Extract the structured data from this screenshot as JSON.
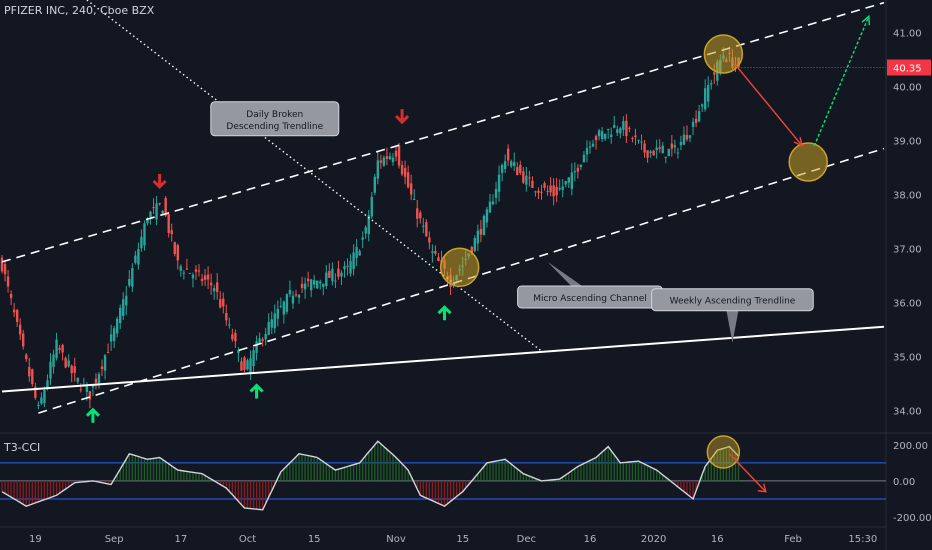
{
  "header": {
    "symbol_line": "PFIZER INC, 240, Cboe BZX"
  },
  "indicator": {
    "name": "T3-CCI"
  },
  "price": {
    "last": "40.35",
    "last_color": "#f23645"
  },
  "colors": {
    "background": "#131722",
    "up": "#26a69a",
    "down": "#ef5350",
    "annotation_circle": "#c9a227",
    "up_arrow": "#00e676",
    "down_arrow": "#d32f2f",
    "forecast_down": "#f44336",
    "forecast_up": "#00e676"
  },
  "chart_data": [
    {
      "type": "candlestick",
      "title": "PFIZER INC, 240, Cboe BZX",
      "y_axis": {
        "ticks": [
          "41.00",
          "40.00",
          "39.00",
          "38.00",
          "37.00",
          "36.00",
          "35.00",
          "34.00"
        ],
        "range": [
          33.6,
          41.6
        ]
      },
      "x_axis": {
        "ticks": [
          "19",
          "Sep",
          "17",
          "Oct",
          "15",
          "Nov",
          "15",
          "Dec",
          "16",
          "2020",
          "16",
          "Feb",
          "15:30"
        ]
      },
      "grid": false,
      "series": [
        {
          "kind": "ohlc",
          "anchors": [
            {
              "i": 0,
              "c": 36.7
            },
            {
              "i": 6,
              "c": 35.3
            },
            {
              "i": 12,
              "c": 34.0
            },
            {
              "i": 18,
              "c": 35.2
            },
            {
              "i": 24,
              "c": 34.6
            },
            {
              "i": 29,
              "c": 34.3
            },
            {
              "i": 38,
              "c": 35.6
            },
            {
              "i": 48,
              "c": 37.6
            },
            {
              "i": 53,
              "c": 37.8
            },
            {
              "i": 58,
              "c": 36.7
            },
            {
              "i": 70,
              "c": 36.3
            },
            {
              "i": 80,
              "c": 34.7
            },
            {
              "i": 86,
              "c": 35.4
            },
            {
              "i": 96,
              "c": 36.2
            },
            {
              "i": 104,
              "c": 36.4
            },
            {
              "i": 114,
              "c": 36.6
            },
            {
              "i": 120,
              "c": 37.3
            },
            {
              "i": 124,
              "c": 38.6
            },
            {
              "i": 130,
              "c": 38.8
            },
            {
              "i": 136,
              "c": 37.8
            },
            {
              "i": 142,
              "c": 36.9
            },
            {
              "i": 148,
              "c": 36.4
            },
            {
              "i": 152,
              "c": 36.7
            },
            {
              "i": 160,
              "c": 37.6
            },
            {
              "i": 166,
              "c": 38.7
            },
            {
              "i": 174,
              "c": 38.2
            },
            {
              "i": 182,
              "c": 38.0
            },
            {
              "i": 188,
              "c": 38.3
            },
            {
              "i": 194,
              "c": 39.0
            },
            {
              "i": 204,
              "c": 39.3
            },
            {
              "i": 212,
              "c": 38.8
            },
            {
              "i": 222,
              "c": 38.8
            },
            {
              "i": 228,
              "c": 39.3
            },
            {
              "i": 233,
              "c": 40.0
            },
            {
              "i": 238,
              "c": 40.6
            },
            {
              "i": 243,
              "c": 40.35
            }
          ]
        }
      ],
      "annotations": [
        {
          "kind": "dashed_line",
          "role": "channel-upper",
          "from": [
            0,
            36.75
          ],
          "to": [
            291,
            41.55
          ]
        },
        {
          "kind": "dashed_line",
          "role": "channel-lower",
          "from": [
            12,
            33.95
          ],
          "to": [
            291,
            38.85
          ]
        },
        {
          "kind": "dotted_line",
          "role": "descending-trendline",
          "from": [
            28,
            41.6
          ],
          "to": [
            178,
            35.1
          ]
        },
        {
          "kind": "solid_line",
          "role": "weekly-ascending-trendline",
          "from": [
            0,
            34.35
          ],
          "to": [
            291,
            35.55
          ]
        },
        {
          "kind": "callout",
          "text": "Daily Broken\nDescending Trendline",
          "at": [
            90,
            39.4
          ],
          "pointer": [
            75,
            39.45
          ]
        },
        {
          "kind": "callout",
          "text": "Micro Ascending Channel",
          "at": [
            194,
            36.1
          ],
          "pointer": [
            180,
            36.75
          ]
        },
        {
          "kind": "callout",
          "text": "Weekly Ascending Trendline",
          "at": [
            241,
            36.05
          ],
          "pointer": [
            241,
            35.25
          ]
        },
        {
          "kind": "circle",
          "at": [
            151,
            36.65
          ]
        },
        {
          "kind": "circle",
          "at": [
            238,
            40.6
          ]
        },
        {
          "kind": "circle",
          "at": [
            266,
            38.6
          ]
        },
        {
          "kind": "down_marker",
          "at": [
            52,
            38.25
          ]
        },
        {
          "kind": "down_marker",
          "at": [
            132,
            39.45
          ]
        },
        {
          "kind": "up_marker",
          "at": [
            30,
            33.9
          ]
        },
        {
          "kind": "up_marker",
          "at": [
            84,
            34.35
          ]
        },
        {
          "kind": "up_marker",
          "at": [
            146,
            35.8
          ]
        },
        {
          "kind": "forecast_arrow",
          "from": [
            242,
            40.4
          ],
          "to": [
            264,
            38.9
          ]
        },
        {
          "kind": "forecast_arrow",
          "from": [
            268,
            38.9
          ],
          "to": [
            286,
            41.3
          ]
        }
      ]
    },
    {
      "type": "area",
      "title": "T3-CCI",
      "y_axis": {
        "ticks": [
          "200.00",
          "0.00",
          "-200.00"
        ],
        "range": [
          -250,
          260
        ]
      },
      "reference_lines": [
        100,
        -100
      ],
      "series": [
        {
          "name": "T3-CCI",
          "anchors": [
            [
              0,
              -60
            ],
            [
              8,
              -140
            ],
            [
              18,
              -80
            ],
            [
              24,
              -10
            ],
            [
              30,
              0
            ],
            [
              36,
              -20
            ],
            [
              42,
              150
            ],
            [
              48,
              120
            ],
            [
              52,
              130
            ],
            [
              58,
              60
            ],
            [
              66,
              40
            ],
            [
              74,
              -40
            ],
            [
              80,
              -150
            ],
            [
              86,
              -160
            ],
            [
              92,
              50
            ],
            [
              98,
              150
            ],
            [
              104,
              130
            ],
            [
              110,
              60
            ],
            [
              118,
              100
            ],
            [
              124,
              220
            ],
            [
              130,
              130
            ],
            [
              134,
              60
            ],
            [
              138,
              -80
            ],
            [
              146,
              -140
            ],
            [
              152,
              -60
            ],
            [
              160,
              100
            ],
            [
              166,
              120
            ],
            [
              172,
              40
            ],
            [
              178,
              0
            ],
            [
              184,
              10
            ],
            [
              190,
              80
            ],
            [
              196,
              130
            ],
            [
              200,
              190
            ],
            [
              204,
              100
            ],
            [
              210,
              110
            ],
            [
              216,
              60
            ],
            [
              222,
              -20
            ],
            [
              228,
              -100
            ],
            [
              232,
              80
            ],
            [
              236,
              170
            ],
            [
              240,
              190
            ],
            [
              244,
              120
            ]
          ]
        }
      ],
      "annotations": [
        {
          "kind": "circle",
          "at": [
            238,
            160
          ]
        },
        {
          "kind": "forecast_arrow",
          "from": [
            240,
            150
          ],
          "to": [
            252,
            -60
          ]
        }
      ]
    }
  ]
}
